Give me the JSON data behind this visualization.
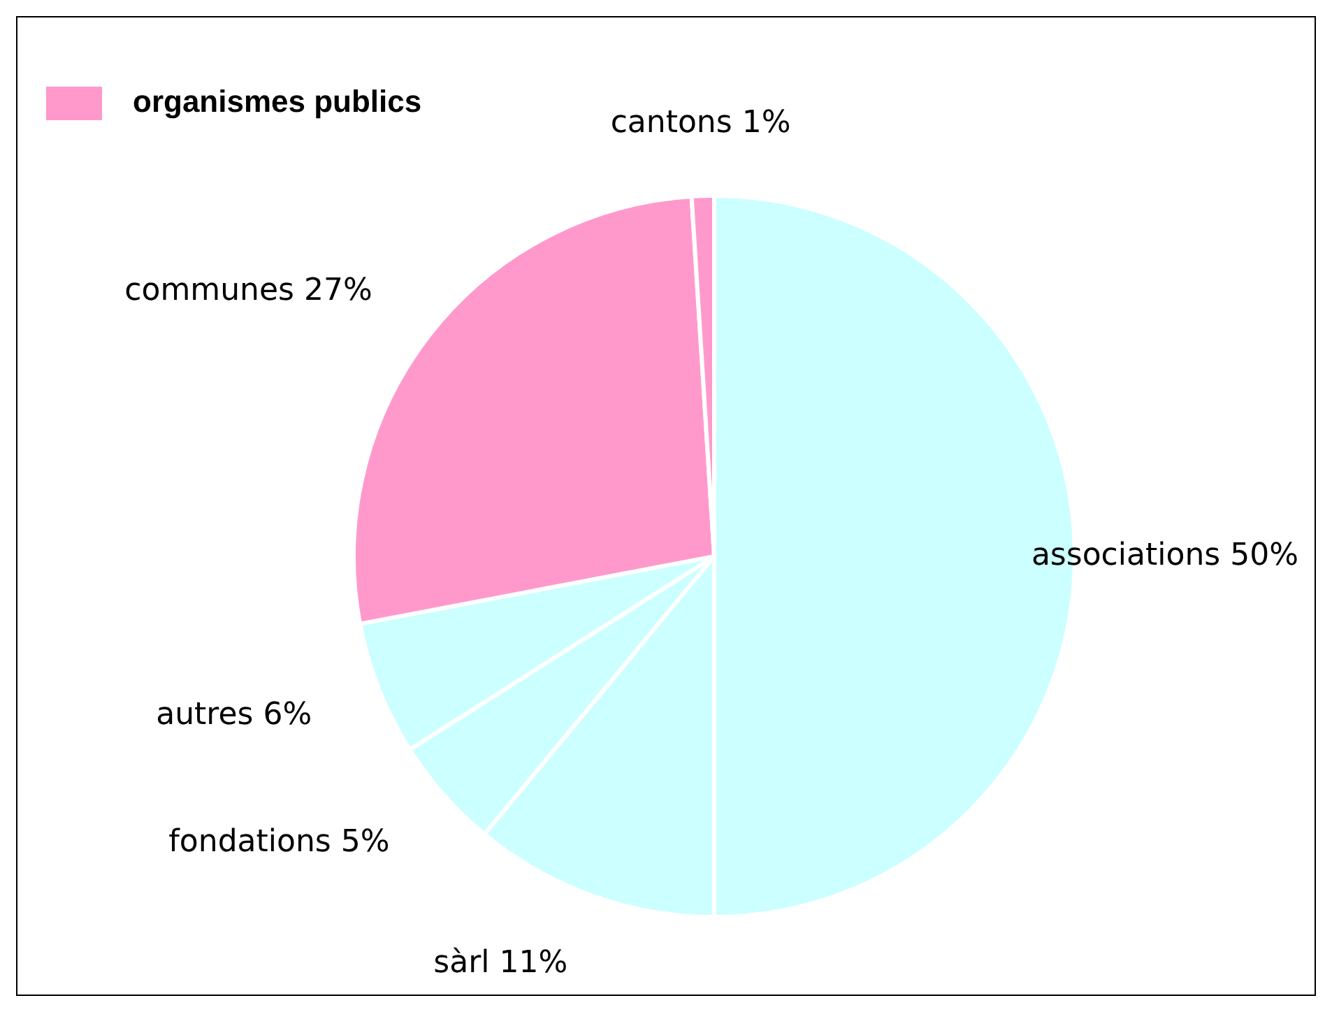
{
  "chart_data": {
    "type": "pie",
    "categories": [
      "associations",
      "sàrl",
      "fondations",
      "autres",
      "communes",
      "cantons"
    ],
    "values": [
      50,
      11,
      5,
      6,
      27,
      1
    ],
    "colors": [
      "#ccffff",
      "#ccffff",
      "#ccffff",
      "#ccffff",
      "#ff99cc",
      "#ff99cc"
    ],
    "value_labels": [
      "50%",
      "11%",
      "5%",
      "6%",
      "27%",
      "1%"
    ],
    "legend_title": "organismes publics"
  }
}
